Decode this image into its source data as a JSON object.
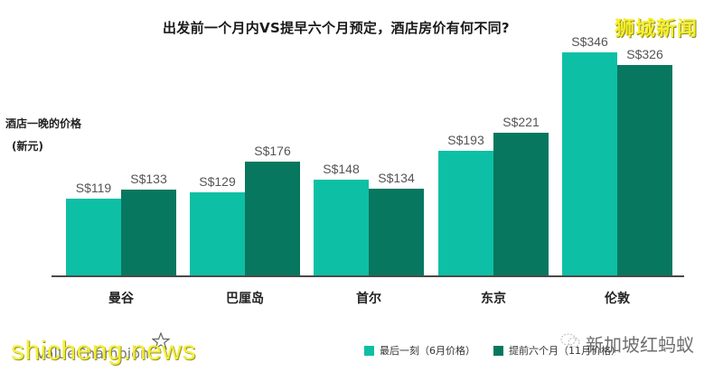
{
  "header": {
    "title": "出发前一个月内VS提早六个月预定，酒店房价有何不同?",
    "watermark_top": "狮城新闻"
  },
  "axis": {
    "ylabel_line1": "酒店一晚的价格",
    "ylabel_line2": "(新元)"
  },
  "legend": {
    "items": [
      {
        "label": "最后一刻（6月价格）",
        "color": "#0dbfa5"
      },
      {
        "label": "提前六个月（11月价格）",
        "color": "#08775f"
      }
    ]
  },
  "footer": {
    "brand": "ValueChampion",
    "watermark_wechat": "新加坡红蚂蚁",
    "watermark_bottom": "shicheng.news"
  },
  "colors": {
    "last_minute": "#0dbfa5",
    "six_months": "#08775f",
    "baseline": "#4a4a4a"
  },
  "chart_data": {
    "type": "bar",
    "title": "出发前一个月内VS提早六个月预定，酒店房价有何不同?",
    "xlabel": "",
    "ylabel": "酒店一晚的价格 (新元)",
    "categories": [
      "曼谷",
      "巴厘岛",
      "首尔",
      "东京",
      "伦敦"
    ],
    "series": [
      {
        "name": "最后一刻（6月价格）",
        "values": [
          119,
          129,
          148,
          193,
          346
        ],
        "labels": [
          "S$119",
          "S$129",
          "S$148",
          "S$193",
          "S$346"
        ]
      },
      {
        "name": "提前六个月（11月价格）",
        "values": [
          133,
          176,
          134,
          221,
          326
        ],
        "labels": [
          "S$133",
          "S$176",
          "S$134",
          "S$221",
          "S$326"
        ]
      }
    ],
    "ylim": [
      0,
      346
    ],
    "grid": false,
    "legend_position": "bottom-right",
    "value_labels": true
  }
}
